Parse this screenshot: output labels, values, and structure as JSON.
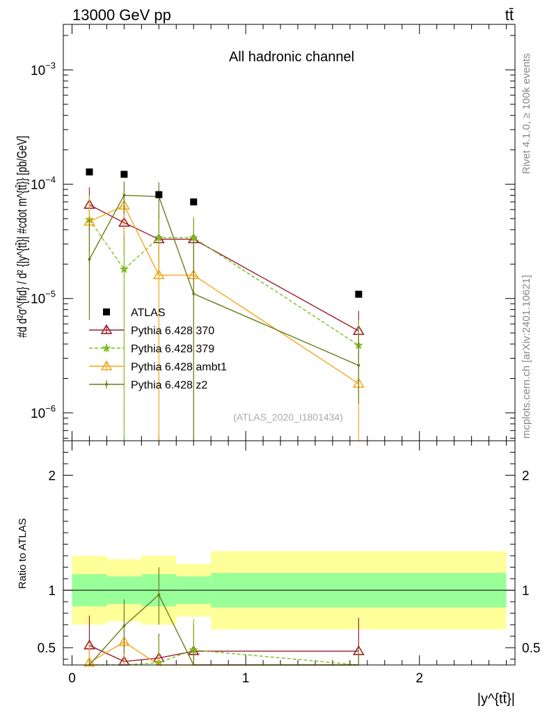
{
  "header": {
    "left": "13000 GeV pp",
    "right": "tt̄"
  },
  "side_labels": {
    "rivet": "Rivet 4.1.0, ≥ 100k events",
    "mcplots": "mcplots.cern.ch [arXiv:2401.10621]"
  },
  "colors": {
    "data": "#000000",
    "p370": "#9b1f2f",
    "p379": "#7dbd1f",
    "ambt1": "#f5a71a",
    "z2": "#6b7d1a",
    "band_inner": "#99ff99",
    "band_outer": "#ffff99"
  },
  "chart_data": {
    "type": "line",
    "title": "All hadronic channel",
    "watermark": "(ATLAS_2020_I1801434)",
    "xlabel": "|y^{tt̄}|",
    "ylabel_top": "#d d²σ^{fid} / d² {|y^{tt̄}| #cdot m^{tt̄}} [pb/GeV]",
    "ylabel_ratio": "Ratio to ATLAS",
    "x_range": [
      -0.05,
      2.55
    ],
    "y_range_top": [
      5.7e-07,
      0.0025
    ],
    "y_scale_top": "log",
    "y_range_ratio": [
      0.35,
      2.3
    ],
    "x_ticks": [
      "0",
      "1",
      "2"
    ],
    "y_ticks_top": [
      "10^{-6}",
      "10^{-5}",
      "10^{-4}",
      "10^{-3}"
    ],
    "y_ticks_ratio": [
      "0.5",
      "1",
      "2"
    ],
    "x": [
      0.1,
      0.3,
      0.5,
      0.7,
      1.65
    ],
    "bin_edges": [
      0,
      0.2,
      0.4,
      0.6,
      0.8,
      2.5
    ],
    "data": {
      "name": "ATLAS",
      "values": [
        0.000128,
        0.000122,
        8.1e-05,
        7e-05,
        1.09e-05
      ]
    },
    "series": [
      {
        "name": "Pythia 6.428 370",
        "key": "p370",
        "style": "solid",
        "marker": "triangle-open",
        "values": [
          6.6e-05,
          4.6e-05,
          3.3e-05,
          3.3e-05,
          5.2e-06
        ],
        "err_up": [
          9.4e-05,
          6.8e-05,
          5e-05,
          5e-05,
          7.8e-06
        ],
        "err_down": [
          4e-05,
          2.4e-05,
          1.6e-05,
          1.6e-05,
          3e-06
        ],
        "ratio": [
          0.52,
          0.38,
          0.41,
          0.47,
          0.47
        ],
        "ratio_err_up": [
          0.78,
          0.56,
          0.62,
          0.7,
          0.76
        ],
        "ratio_err_down": [
          0.3,
          0.2,
          0.2,
          0.25,
          0.3
        ]
      },
      {
        "name": "Pythia 6.428 379",
        "key": "p379",
        "style": "dashed",
        "marker": "star",
        "values": [
          4.9e-05,
          1.8e-05,
          3.4e-05,
          3.4e-05,
          3.9e-06
        ],
        "err_up": [
          8e-05,
          4e-05,
          5.5e-05,
          5.2e-05,
          6.5e-06
        ],
        "err_down": [
          2.5e-05,
          1e-07,
          1.8e-05,
          1.6e-05,
          1.5e-06
        ],
        "ratio": [
          0.3,
          0.15,
          0.37,
          0.48,
          0.3
        ],
        "ratio_err_up": [
          0.5,
          0.35,
          0.6,
          0.75,
          0.5
        ],
        "ratio_err_down": [
          0.15,
          0.0,
          0.2,
          0.25,
          0.1
        ]
      },
      {
        "name": "Pythia 6.428 ambt1",
        "key": "ambt1",
        "style": "solid",
        "marker": "triangle-open",
        "values": [
          4.7e-05,
          6.5e-05,
          1.6e-05,
          1.6e-05,
          1.8e-06
        ],
        "err_up": [
          7.5e-05,
          9.5e-05,
          3e-05,
          3e-05,
          3.5e-06
        ],
        "err_down": [
          2e-05,
          3.5e-05,
          1e-07,
          1e-07,
          1e-07
        ],
        "ratio": [
          0.37,
          0.55,
          0.2,
          0.23,
          0.17
        ],
        "ratio_err_up": [
          0.55,
          0.8,
          0.45,
          0.45,
          0.3
        ],
        "ratio_err_down": [
          0.2,
          0.3,
          0.0,
          0.0,
          0.0
        ]
      },
      {
        "name": "Pythia 6.428 z2",
        "key": "z2",
        "style": "solid",
        "marker": "dot",
        "values": [
          2.2e-05,
          8e-05,
          7.8e-05,
          1.1e-05,
          2.6e-06
        ],
        "err_up": [
          5e-05,
          0.000106,
          0.000104,
          3.3e-05,
          5e-06
        ],
        "err_down": [
          6.5e-06,
          5.5e-05,
          5e-05,
          1e-07,
          1.2e-06
        ],
        "ratio": [
          0.17,
          0.69,
          0.96,
          0.16,
          0.24
        ],
        "ratio_err_up": [
          0.4,
          0.92,
          1.2,
          0.48,
          0.45
        ],
        "ratio_err_down": [
          0.05,
          0.45,
          0.7,
          0.0,
          0.1
        ]
      }
    ],
    "band_inner": [
      [
        0.86,
        1.14
      ],
      [
        0.88,
        1.12
      ],
      [
        0.86,
        1.14
      ],
      [
        0.88,
        1.12
      ],
      [
        0.85,
        1.15
      ]
    ],
    "band_outer": [
      [
        0.7,
        1.3
      ],
      [
        0.73,
        1.27
      ],
      [
        0.7,
        1.3
      ],
      [
        0.77,
        1.23
      ],
      [
        0.66,
        1.34
      ]
    ],
    "legend_position": "lower-left"
  }
}
